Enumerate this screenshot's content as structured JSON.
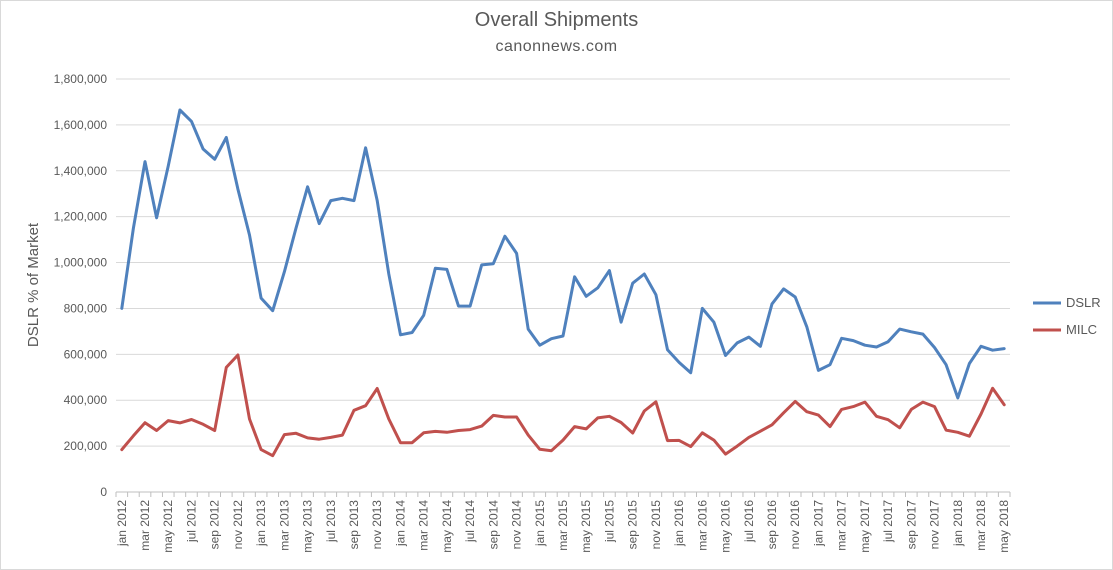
{
  "chart_data": {
    "type": "line",
    "title": "Overall Shipments",
    "subtitle": "canonnews.com",
    "ylabel": "DSLR % of Market",
    "xlabel": "",
    "ylim": [
      0,
      1800000
    ],
    "yticks": [
      "0",
      "200,000",
      "400,000",
      "600,000",
      "800,000",
      "1,000,000",
      "1,200,000",
      "1,400,000",
      "1,600,000",
      "1,800,000"
    ],
    "grid": "horizontal",
    "legend_position": "right",
    "x": [
      "jan 2012",
      "feb 2012",
      "mar 2012",
      "apr 2012",
      "may 2012",
      "jun 2012",
      "jul 2012",
      "aug 2012",
      "sep 2012",
      "oct 2012",
      "nov 2012",
      "dec 2012",
      "jan 2013",
      "feb 2013",
      "mar 2013",
      "apr 2013",
      "may 2013",
      "jun 2013",
      "jul 2013",
      "aug 2013",
      "sep 2013",
      "oct 2013",
      "nov 2013",
      "dec 2013",
      "jan 2014",
      "feb 2014",
      "mar 2014",
      "apr 2014",
      "may 2014",
      "jun 2014",
      "jul 2014",
      "aug 2014",
      "sep 2014",
      "oct 2014",
      "nov 2014",
      "dec 2014",
      "jan 2015",
      "feb 2015",
      "mar 2015",
      "apr 2015",
      "may 2015",
      "jun 2015",
      "jul 2015",
      "aug 2015",
      "sep 2015",
      "oct 2015",
      "nov 2015",
      "dec 2015",
      "jan 2016",
      "feb 2016",
      "mar 2016",
      "apr 2016",
      "may 2016",
      "jun 2016",
      "jul 2016",
      "aug 2016",
      "sep 2016",
      "oct 2016",
      "nov 2016",
      "dec 2016",
      "jan 2017",
      "feb 2017",
      "mar 2017",
      "apr 2017",
      "may 2017",
      "jun 2017",
      "jul 2017",
      "aug 2017",
      "sep 2017",
      "oct 2017",
      "nov 2017",
      "dec 2017",
      "jan 2018",
      "feb 2018",
      "mar 2018",
      "apr 2018",
      "may 2018"
    ],
    "xtick_labels": [
      "jan 2012",
      "mar 2012",
      "may 2012",
      "jul 2012",
      "sep 2012",
      "nov 2012",
      "jan 2013",
      "mar 2013",
      "may 2013",
      "jul 2013",
      "sep 2013",
      "nov 2013",
      "jan 2014",
      "mar 2014",
      "may 2014",
      "jul 2014",
      "sep 2014",
      "nov 2014",
      "jan 2015",
      "mar 2015",
      "may 2015",
      "jul 2015",
      "sep 2015",
      "nov 2015",
      "jan 2016",
      "mar 2016",
      "may 2016",
      "jul 2016",
      "sep 2016",
      "nov 2016",
      "jan 2017",
      "mar 2017",
      "may 2017",
      "jul 2017",
      "sep 2017",
      "nov 2017",
      "jan 2018",
      "mar 2018",
      "may 2018"
    ],
    "series": [
      {
        "name": "DSLR",
        "color": "#4f81bd",
        "values": [
          800000,
          1150000,
          1440000,
          1195000,
          1420000,
          1665000,
          1615000,
          1495000,
          1450000,
          1545000,
          1320000,
          1120000,
          845000,
          790000,
          960000,
          1150000,
          1330000,
          1170000,
          1270000,
          1280000,
          1270000,
          1500000,
          1270000,
          950000,
          685000,
          695000,
          770000,
          975000,
          970000,
          810000,
          810000,
          990000,
          995000,
          1115000,
          1040000,
          710000,
          640000,
          668000,
          680000,
          938000,
          853000,
          890000,
          965000,
          740000,
          910000,
          950000,
          860000,
          620000,
          565000,
          520000,
          800000,
          740000,
          595000,
          650000,
          675000,
          635000,
          820000,
          885000,
          850000,
          720000,
          530000,
          555000,
          670000,
          660000,
          640000,
          632000,
          655000,
          710000,
          698000,
          688000,
          630000,
          555000,
          410000,
          560000,
          635000,
          618000,
          625000
        ]
      },
      {
        "name": "MILC",
        "color": "#c0504d",
        "values": [
          185000,
          245000,
          302000,
          268000,
          311000,
          301000,
          316000,
          295000,
          268000,
          543000,
          597000,
          318000,
          185000,
          158000,
          250000,
          256000,
          236000,
          230000,
          238000,
          248000,
          356000,
          376000,
          451000,
          318000,
          215000,
          215000,
          258000,
          264000,
          260000,
          268000,
          272000,
          287000,
          334000,
          327000,
          327000,
          248000,
          186000,
          180000,
          226000,
          285000,
          275000,
          323000,
          330000,
          303000,
          257000,
          353000,
          393000,
          224000,
          225000,
          198000,
          258000,
          226000,
          165000,
          200000,
          238000,
          265000,
          293000,
          345000,
          395000,
          350000,
          335000,
          285000,
          360000,
          372000,
          392000,
          330000,
          315000,
          280000,
          360000,
          392000,
          372000,
          270000,
          260000,
          243000,
          340000,
          452000,
          380000
        ]
      }
    ]
  }
}
